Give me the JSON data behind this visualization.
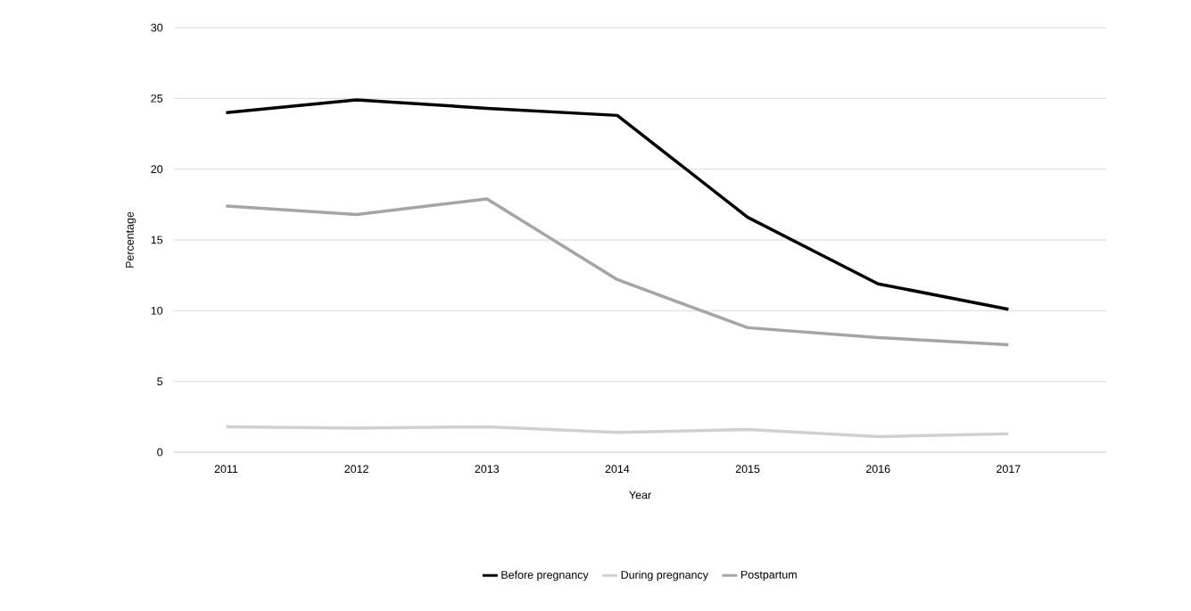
{
  "chart_data": {
    "type": "line",
    "xlabel": "Year",
    "ylabel": "Percentage",
    "categories": [
      "2011",
      "2012",
      "2013",
      "2014",
      "2015",
      "2016",
      "2017"
    ],
    "series": [
      {
        "name": "Before pregnancy",
        "color": "#000000",
        "values": [
          24.0,
          24.9,
          24.3,
          23.8,
          16.6,
          11.9,
          10.1
        ]
      },
      {
        "name": "During pregnancy",
        "color": "#d0d0d0",
        "values": [
          1.8,
          1.7,
          1.8,
          1.4,
          1.6,
          1.1,
          1.3
        ]
      },
      {
        "name": "Postpartum",
        "color": "#a5a5a5",
        "values": [
          17.4,
          16.8,
          17.9,
          12.2,
          8.8,
          8.1,
          7.6
        ]
      }
    ],
    "ylim": [
      0,
      30
    ],
    "yticks": [
      0,
      5,
      10,
      15,
      20,
      25,
      30
    ],
    "grid": "y",
    "legend": "bottom",
    "marker": "none",
    "line_style": "solid"
  }
}
